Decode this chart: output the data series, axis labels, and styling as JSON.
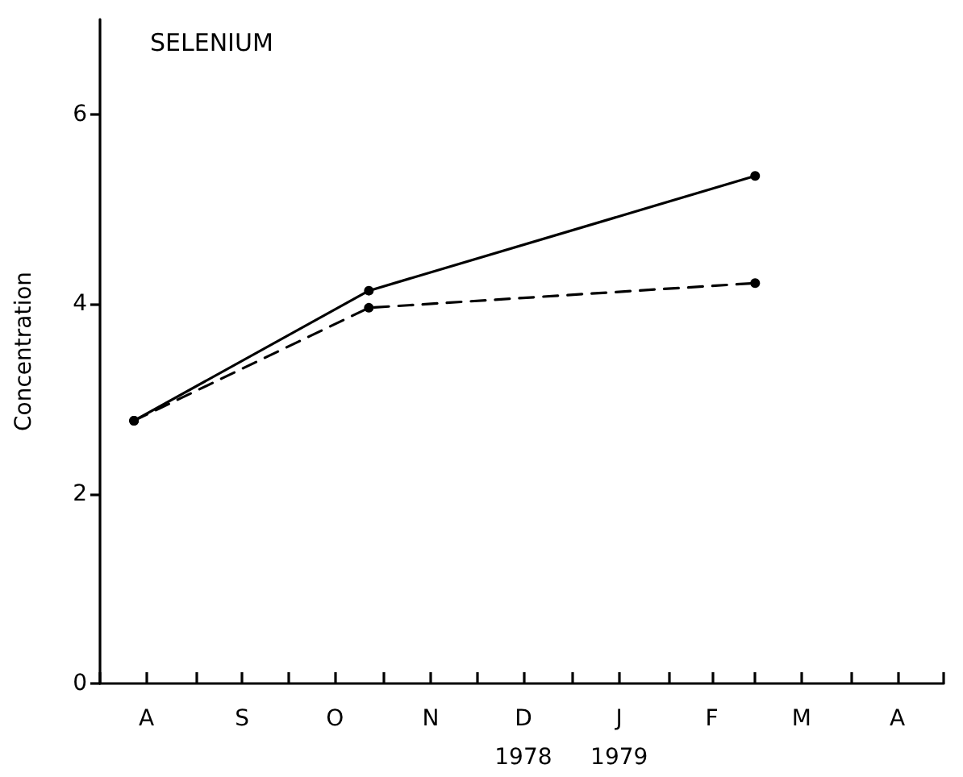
{
  "chart_data": {
    "type": "line",
    "title": "SELENIUM",
    "ylabel": "Concentration",
    "x": [
      "1978-08-12",
      "1978-10-27",
      "1979-03-01"
    ],
    "series": [
      {
        "color": "#000000",
        "line_style": "solid",
        "values": [
          2.77,
          4.14,
          5.35
        ]
      },
      {
        "color": "#000000",
        "line_style": "dashed",
        "values": [
          2.77,
          3.96,
          4.22
        ]
      }
    ],
    "xlim": [
      "1978-08-01",
      "1979-05-01"
    ],
    "xticks": [
      {
        "value": "1978-08-01",
        "label": null
      },
      {
        "value": "1978-08-16",
        "label": "A"
      },
      {
        "value": "1978-09-01",
        "label": null
      },
      {
        "value": "1978-09-16",
        "label": "S"
      },
      {
        "value": "1978-10-01",
        "label": null
      },
      {
        "value": "1978-10-16",
        "label": "O"
      },
      {
        "value": "1978-11-01",
        "label": null
      },
      {
        "value": "1978-11-16",
        "label": "N"
      },
      {
        "value": "1978-12-01",
        "label": null
      },
      {
        "value": "1978-12-16",
        "label": "D\n1978"
      },
      {
        "value": "1979-01-01",
        "label": null
      },
      {
        "value": "1979-01-16",
        "label": "J\n1979"
      },
      {
        "value": "1979-02-01",
        "label": null
      },
      {
        "value": "1979-02-15",
        "label": "F"
      },
      {
        "value": "1979-03-01",
        "label": null
      },
      {
        "value": "1979-03-16",
        "label": "M"
      },
      {
        "value": "1979-04-01",
        "label": null
      },
      {
        "value": "1979-04-16",
        "label": "A"
      },
      {
        "value": "1979-05-01",
        "label": null
      }
    ],
    "ylim": [
      0,
      7
    ],
    "yticks": [
      0,
      2,
      4,
      6
    ],
    "marker": "circle",
    "grid": false
  }
}
